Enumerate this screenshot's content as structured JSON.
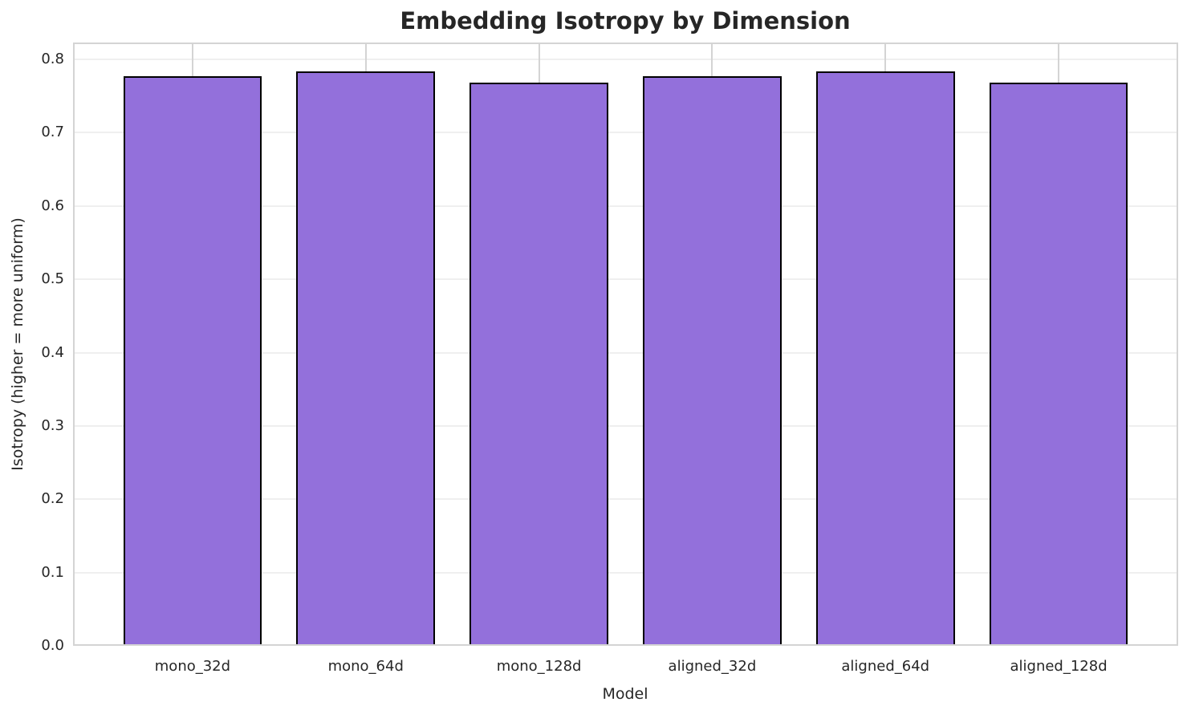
{
  "chart_data": {
    "type": "bar",
    "title": "Embedding Isotropy by Dimension",
    "xlabel": "Model",
    "ylabel": "Isotropy (higher = more uniform)",
    "categories": [
      "mono_32d",
      "mono_64d",
      "mono_128d",
      "aligned_32d",
      "aligned_64d",
      "aligned_128d"
    ],
    "values": [
      0.777,
      0.784,
      0.768,
      0.777,
      0.784,
      0.768
    ],
    "ylim": [
      0.0,
      0.823
    ],
    "yticks": [
      0.0,
      0.1,
      0.2,
      0.3,
      0.4,
      0.5,
      0.6,
      0.7,
      0.8
    ],
    "ytick_label_format": "one_decimal",
    "grid": true,
    "legend_position": "none",
    "bar_color": "#9370DB",
    "bar_edge_color": "#000000",
    "hgrid_color": "#efefef",
    "vgrid_color": "#d4d4d4",
    "spine_color": "#d4d4d4",
    "text_color": "#262626",
    "background_color": "#ffffff"
  }
}
